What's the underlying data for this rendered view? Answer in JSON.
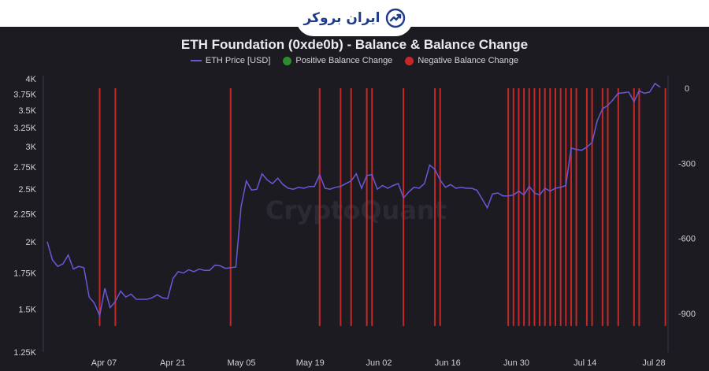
{
  "brand": {
    "logo_text": "ایران بروکر"
  },
  "chart_data": {
    "type": "line",
    "title": "ETH Foundation (0xde0b) - Balance & Balance Change",
    "watermark": "CryptoQuant",
    "legend": [
      {
        "name": "ETH Price [USD]",
        "color": "#6a58d8",
        "marker": "line"
      },
      {
        "name": "Positive Balance Change",
        "color": "#2e8b2e",
        "marker": "dot"
      },
      {
        "name": "Negative Balance Change",
        "color": "#c62828",
        "marker": "dot"
      }
    ],
    "x_ticks": [
      "Apr 07",
      "Apr 21",
      "May 05",
      "May 19",
      "Jun 02",
      "Jun 16",
      "Jun 30",
      "Jul 14",
      "Jul 28"
    ],
    "y_left": {
      "label": "",
      "ticks": [
        1250,
        1500,
        1750,
        2000,
        2250,
        2500,
        2750,
        3000,
        3250,
        3500,
        3750,
        4000
      ],
      "tick_labels": [
        "1.25K",
        "1.5K",
        "1.75K",
        "2K",
        "2.25K",
        "2.5K",
        "2.75K",
        "3K",
        "3.25K",
        "3.5K",
        "3.75K",
        "4K"
      ],
      "scale": "log",
      "range": [
        1250,
        4000
      ]
    },
    "y_right": {
      "label": "",
      "ticks": [
        0,
        -300,
        -600,
        -900
      ],
      "tick_labels": [
        "0",
        "-300",
        "-600",
        "-900"
      ],
      "range": [
        -1000,
        0
      ]
    },
    "price_series": {
      "name": "ETH Price [USD]",
      "color": "#6a58d8",
      "values": [
        2000,
        1850,
        1800,
        1820,
        1890,
        1780,
        1800,
        1790,
        1580,
        1540,
        1460,
        1640,
        1510,
        1550,
        1620,
        1580,
        1600,
        1565,
        1565,
        1565,
        1575,
        1595,
        1575,
        1570,
        1710,
        1760,
        1750,
        1775,
        1760,
        1780,
        1770,
        1770,
        1810,
        1805,
        1785,
        1790,
        1795,
        2320,
        2590,
        2490,
        2500,
        2670,
        2600,
        2560,
        2620,
        2550,
        2510,
        2500,
        2520,
        2510,
        2530,
        2530,
        2660,
        2510,
        2500,
        2520,
        2530,
        2560,
        2590,
        2670,
        2510,
        2650,
        2660,
        2500,
        2540,
        2510,
        2540,
        2560,
        2410,
        2470,
        2520,
        2510,
        2560,
        2770,
        2720,
        2600,
        2520,
        2550,
        2510,
        2520,
        2510,
        2510,
        2490,
        2400,
        2310,
        2450,
        2460,
        2430,
        2430,
        2440,
        2480,
        2440,
        2530,
        2460,
        2440,
        2510,
        2480,
        2510,
        2520,
        2540,
        2980,
        2960,
        2950,
        2990,
        3050,
        3350,
        3520,
        3570,
        3660,
        3760,
        3770,
        3780,
        3630,
        3800,
        3760,
        3780,
        3920,
        3860
      ]
    },
    "balance_changes": {
      "name": "Negative Balance Change",
      "color": "#c62828",
      "bars": [
        {
          "index": 10,
          "value": -950
        },
        {
          "index": 13,
          "value": -950
        },
        {
          "index": 35,
          "value": -950
        },
        {
          "index": 52,
          "value": -950
        },
        {
          "index": 56,
          "value": -950
        },
        {
          "index": 58,
          "value": -950
        },
        {
          "index": 61,
          "value": -950
        },
        {
          "index": 62,
          "value": -950
        },
        {
          "index": 68,
          "value": -950
        },
        {
          "index": 74,
          "value": -950
        },
        {
          "index": 75,
          "value": -950
        },
        {
          "index": 88,
          "value": -950
        },
        {
          "index": 89,
          "value": -950
        },
        {
          "index": 90,
          "value": -950
        },
        {
          "index": 91,
          "value": -950
        },
        {
          "index": 92,
          "value": -950
        },
        {
          "index": 93,
          "value": -950
        },
        {
          "index": 94,
          "value": -950
        },
        {
          "index": 95,
          "value": -950
        },
        {
          "index": 96,
          "value": -950
        },
        {
          "index": 97,
          "value": -950
        },
        {
          "index": 98,
          "value": -950
        },
        {
          "index": 99,
          "value": -950
        },
        {
          "index": 100,
          "value": -950
        },
        {
          "index": 101,
          "value": -950
        },
        {
          "index": 103,
          "value": -950
        },
        {
          "index": 104,
          "value": -950
        },
        {
          "index": 106,
          "value": -950
        },
        {
          "index": 107,
          "value": -950
        },
        {
          "index": 109,
          "value": -950
        },
        {
          "index": 112,
          "value": -950
        },
        {
          "index": 113,
          "value": -950
        },
        {
          "index": 118,
          "value": -950
        }
      ]
    }
  }
}
